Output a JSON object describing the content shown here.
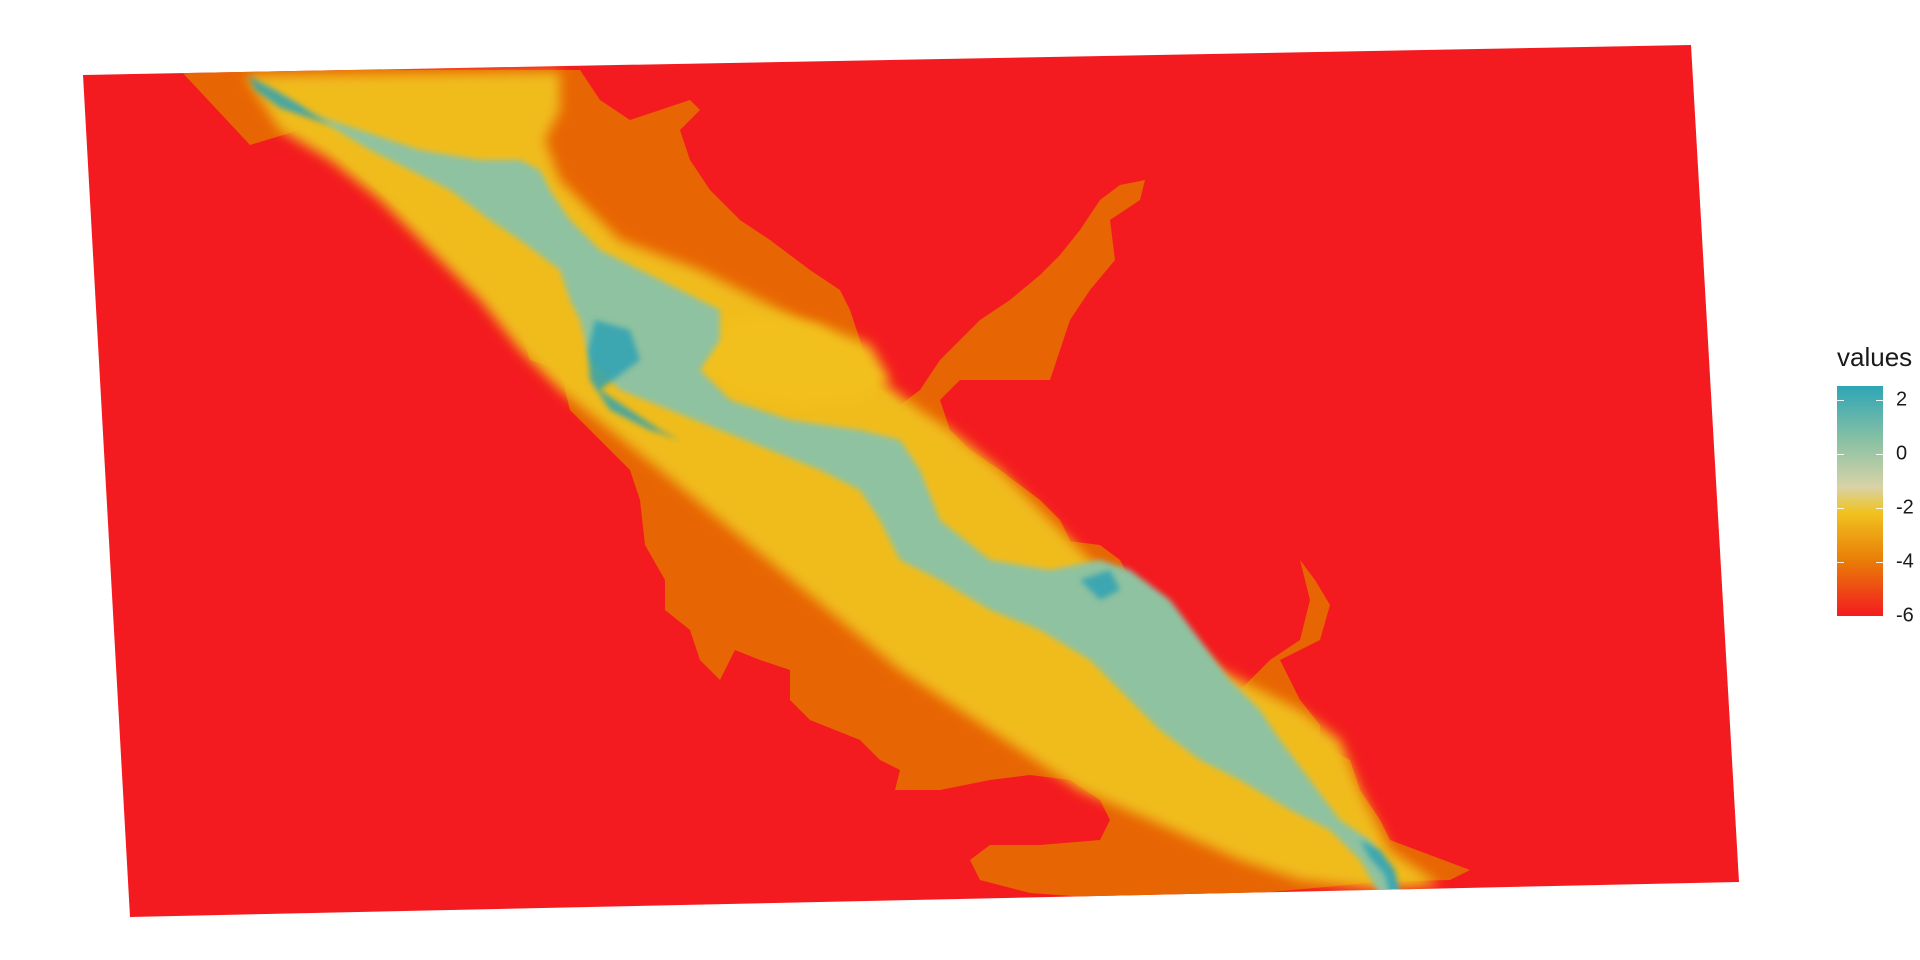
{
  "legend": {
    "title": "values",
    "labels": [
      "2",
      "0",
      "-2",
      "-4",
      "-6"
    ],
    "range": [
      -6,
      2.5
    ]
  },
  "colors": {
    "background": "#f31b1f",
    "shelf": "#e86503",
    "shallow": "#f0bc1c",
    "mid": "#8fc2a0",
    "deep": "#2ea2b4"
  }
}
